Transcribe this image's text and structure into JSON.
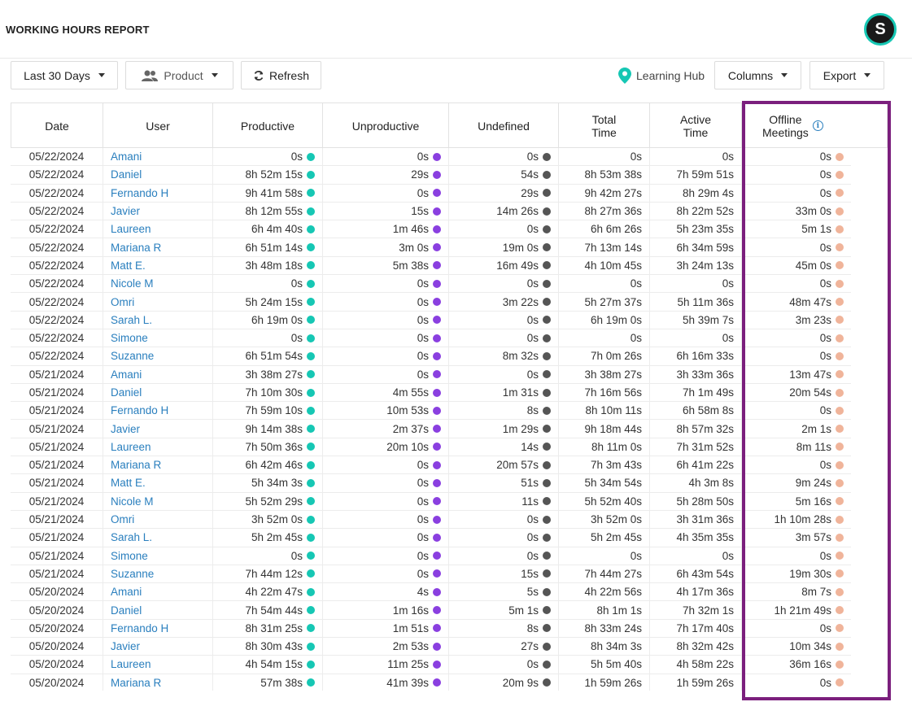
{
  "header": {
    "title": "WORKING HOURS REPORT",
    "avatar_letter": "S"
  },
  "toolbar": {
    "date_range": "Last 30 Days",
    "group": "Product",
    "refresh": "Refresh",
    "learning_hub": "Learning Hub",
    "columns": "Columns",
    "export": "Export"
  },
  "colors": {
    "productive": "#16c7b4",
    "unproductive": "#8a3fe0",
    "undefined": "#555555",
    "offline": "#f0b49a",
    "link": "#2a7fbe",
    "highlight": "#7b1f7d"
  },
  "table": {
    "headers": {
      "date": "Date",
      "user": "User",
      "productive": "Productive",
      "unproductive": "Unproductive",
      "undefined": "Undefined",
      "total1": "Total",
      "total2": "Time",
      "active1": "Active",
      "active2": "Time",
      "offline1": "Offline",
      "offline2": "Meetings"
    },
    "rows": [
      [
        "05/22/2024",
        "Amani",
        "0s",
        "0s",
        "0s",
        "0s",
        "0s",
        "0s"
      ],
      [
        "05/22/2024",
        "Daniel",
        "8h 52m 15s",
        "29s",
        "54s",
        "8h 53m 38s",
        "7h 59m 51s",
        "0s"
      ],
      [
        "05/22/2024",
        "Fernando H",
        "9h 41m 58s",
        "0s",
        "29s",
        "9h 42m 27s",
        "8h 29m 4s",
        "0s"
      ],
      [
        "05/22/2024",
        "Javier",
        "8h 12m 55s",
        "15s",
        "14m 26s",
        "8h 27m 36s",
        "8h 22m 52s",
        "33m 0s"
      ],
      [
        "05/22/2024",
        "Laureen",
        "6h 4m 40s",
        "1m 46s",
        "0s",
        "6h 6m 26s",
        "5h 23m 35s",
        "5m 1s"
      ],
      [
        "05/22/2024",
        "Mariana R",
        "6h 51m 14s",
        "3m 0s",
        "19m 0s",
        "7h 13m 14s",
        "6h 34m 59s",
        "0s"
      ],
      [
        "05/22/2024",
        "Matt E.",
        "3h 48m 18s",
        "5m 38s",
        "16m 49s",
        "4h 10m 45s",
        "3h 24m 13s",
        "45m 0s"
      ],
      [
        "05/22/2024",
        "Nicole M",
        "0s",
        "0s",
        "0s",
        "0s",
        "0s",
        "0s"
      ],
      [
        "05/22/2024",
        "Omri",
        "5h 24m 15s",
        "0s",
        "3m 22s",
        "5h 27m 37s",
        "5h 11m 36s",
        "48m 47s"
      ],
      [
        "05/22/2024",
        "Sarah L.",
        "6h 19m 0s",
        "0s",
        "0s",
        "6h 19m 0s",
        "5h 39m 7s",
        "3m 23s"
      ],
      [
        "05/22/2024",
        "Simone",
        "0s",
        "0s",
        "0s",
        "0s",
        "0s",
        "0s"
      ],
      [
        "05/22/2024",
        "Suzanne",
        "6h 51m 54s",
        "0s",
        "8m 32s",
        "7h 0m 26s",
        "6h 16m 33s",
        "0s"
      ],
      [
        "05/21/2024",
        "Amani",
        "3h 38m 27s",
        "0s",
        "0s",
        "3h 38m 27s",
        "3h 33m 36s",
        "13m 47s"
      ],
      [
        "05/21/2024",
        "Daniel",
        "7h 10m 30s",
        "4m 55s",
        "1m 31s",
        "7h 16m 56s",
        "7h 1m 49s",
        "20m 54s"
      ],
      [
        "05/21/2024",
        "Fernando H",
        "7h 59m 10s",
        "10m 53s",
        "8s",
        "8h 10m 11s",
        "6h 58m 8s",
        "0s"
      ],
      [
        "05/21/2024",
        "Javier",
        "9h 14m 38s",
        "2m 37s",
        "1m 29s",
        "9h 18m 44s",
        "8h 57m 32s",
        "2m 1s"
      ],
      [
        "05/21/2024",
        "Laureen",
        "7h 50m 36s",
        "20m 10s",
        "14s",
        "8h 11m 0s",
        "7h 31m 52s",
        "8m 11s"
      ],
      [
        "05/21/2024",
        "Mariana R",
        "6h 42m 46s",
        "0s",
        "20m 57s",
        "7h 3m 43s",
        "6h 41m 22s",
        "0s"
      ],
      [
        "05/21/2024",
        "Matt E.",
        "5h 34m 3s",
        "0s",
        "51s",
        "5h 34m 54s",
        "4h 3m 8s",
        "9m 24s"
      ],
      [
        "05/21/2024",
        "Nicole M",
        "5h 52m 29s",
        "0s",
        "11s",
        "5h 52m 40s",
        "5h 28m 50s",
        "5m 16s"
      ],
      [
        "05/21/2024",
        "Omri",
        "3h 52m 0s",
        "0s",
        "0s",
        "3h 52m 0s",
        "3h 31m 36s",
        "1h 10m 28s"
      ],
      [
        "05/21/2024",
        "Sarah L.",
        "5h 2m 45s",
        "0s",
        "0s",
        "5h 2m 45s",
        "4h 35m 35s",
        "3m 57s"
      ],
      [
        "05/21/2024",
        "Simone",
        "0s",
        "0s",
        "0s",
        "0s",
        "0s",
        "0s"
      ],
      [
        "05/21/2024",
        "Suzanne",
        "7h 44m 12s",
        "0s",
        "15s",
        "7h 44m 27s",
        "6h 43m 54s",
        "19m 30s"
      ],
      [
        "05/20/2024",
        "Amani",
        "4h 22m 47s",
        "4s",
        "5s",
        "4h 22m 56s",
        "4h 17m 36s",
        "8m 7s"
      ],
      [
        "05/20/2024",
        "Daniel",
        "7h 54m 44s",
        "1m 16s",
        "5m 1s",
        "8h 1m 1s",
        "7h 32m 1s",
        "1h 21m 49s"
      ],
      [
        "05/20/2024",
        "Fernando H",
        "8h 31m 25s",
        "1m 51s",
        "8s",
        "8h 33m 24s",
        "7h 17m 40s",
        "0s"
      ],
      [
        "05/20/2024",
        "Javier",
        "8h 30m 43s",
        "2m 53s",
        "27s",
        "8h 34m 3s",
        "8h 32m 42s",
        "10m 34s"
      ],
      [
        "05/20/2024",
        "Laureen",
        "4h 54m 15s",
        "11m 25s",
        "0s",
        "5h 5m 40s",
        "4h 58m 22s",
        "36m 16s"
      ],
      [
        "05/20/2024",
        "Mariana R",
        "57m 38s",
        "41m 39s",
        "20m 9s",
        "1h 59m 26s",
        "1h 59m 26s",
        "0s"
      ]
    ]
  }
}
